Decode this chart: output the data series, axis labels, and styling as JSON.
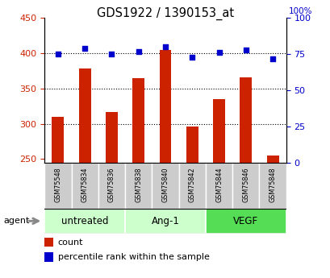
{
  "title": "GDS1922 / 1390153_at",
  "samples": [
    "GSM75548",
    "GSM75834",
    "GSM75836",
    "GSM75838",
    "GSM75840",
    "GSM75842",
    "GSM75844",
    "GSM75846",
    "GSM75848"
  ],
  "counts": [
    310,
    379,
    317,
    365,
    405,
    296,
    335,
    366,
    255
  ],
  "percentile_ranks": [
    75,
    79,
    75,
    77,
    80,
    73,
    76,
    78,
    72
  ],
  "groups": [
    {
      "label": "untreated",
      "start": 0,
      "end": 2,
      "color": "#ccffcc"
    },
    {
      "label": "Ang-1",
      "start": 3,
      "end": 5,
      "color": "#ccffcc"
    },
    {
      "label": "VEGF",
      "start": 6,
      "end": 8,
      "color": "#55dd55"
    }
  ],
  "bar_color": "#cc2200",
  "dot_color": "#0000cc",
  "dot_size": 18,
  "bar_width": 0.45,
  "ylim_left": [
    245,
    450
  ],
  "ylim_right": [
    0,
    100
  ],
  "yticks_left": [
    250,
    300,
    350,
    400,
    450
  ],
  "yticks_right": [
    0,
    25,
    50,
    75,
    100
  ],
  "grid_yticks": [
    300,
    350,
    400
  ],
  "left_tick_color": "#cc2200",
  "right_tick_color": "#0000cc",
  "tick_area_color": "#cccccc",
  "legend_count_color": "#cc2200",
  "legend_pct_color": "#0000cc",
  "agent_arrow_color": "#888888"
}
